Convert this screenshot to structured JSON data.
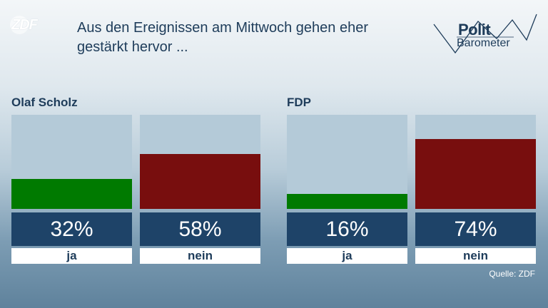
{
  "header": {
    "logo_text": "ZDF",
    "headline": "Aus den Ereignissen am Mittwoch gehen eher gestärkt hervor ...",
    "brand_line1": "Polit",
    "brand_line2": "Barometer"
  },
  "source": "Quelle: ZDF",
  "colors": {
    "ja": "#007a00",
    "nein": "#780e0e",
    "bar_bg": "#b4cad8",
    "value_bg": "#1e4368"
  },
  "chart_data": [
    {
      "type": "bar",
      "title": "Olaf Scholz",
      "categories": [
        "ja",
        "nein"
      ],
      "values": [
        32,
        58
      ],
      "value_labels": [
        "32%",
        "58%"
      ],
      "ylim": [
        0,
        100
      ],
      "unit": "%"
    },
    {
      "type": "bar",
      "title": "FDP",
      "categories": [
        "ja",
        "nein"
      ],
      "values": [
        16,
        74
      ],
      "value_labels": [
        "16%",
        "74%"
      ],
      "ylim": [
        0,
        100
      ],
      "unit": "%"
    }
  ]
}
